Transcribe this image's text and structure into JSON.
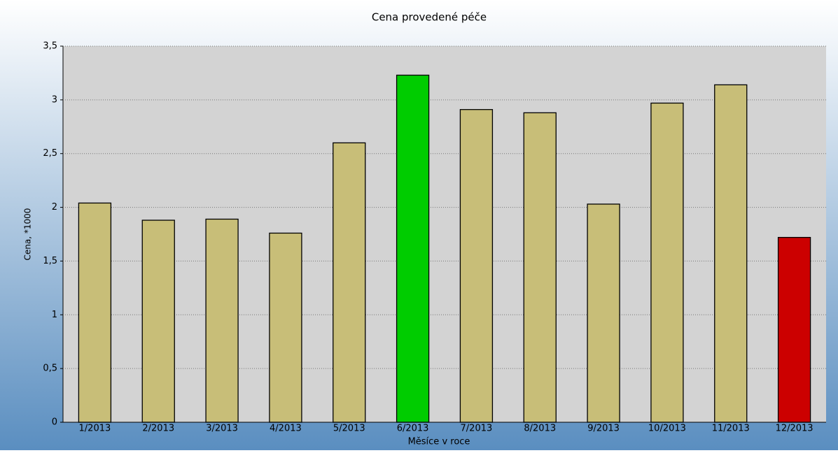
{
  "chart_data": {
    "type": "bar",
    "title": "Cena provedené péče",
    "x_label": "Měsíce v roce",
    "y_label": "Cena, *1000",
    "categories": [
      "1/2013",
      "2/2013",
      "3/2013",
      "4/2013",
      "5/2013",
      "6/2013",
      "7/2013",
      "8/2013",
      "9/2013",
      "10/2013",
      "11/2013",
      "12/2013"
    ],
    "values": [
      2.04,
      1.88,
      1.89,
      1.76,
      2.6,
      3.23,
      2.91,
      2.88,
      2.03,
      2.97,
      3.14,
      1.72
    ],
    "colors": [
      "#c8be78",
      "#c8be78",
      "#c8be78",
      "#c8be78",
      "#c8be78",
      "#00cc00",
      "#c8be78",
      "#c8be78",
      "#c8be78",
      "#c8be78",
      "#c8be78",
      "#cc0000"
    ],
    "ylim": [
      0,
      3.5
    ],
    "yticks": [
      0,
      {
        "value": 0.5,
        "label": "0,5"
      },
      1,
      {
        "value": 1.5,
        "label": "1,5"
      },
      2,
      {
        "value": 2.5,
        "label": "2,5"
      },
      3,
      {
        "value": 3.5,
        "label": "3,5"
      }
    ],
    "grid": true
  }
}
